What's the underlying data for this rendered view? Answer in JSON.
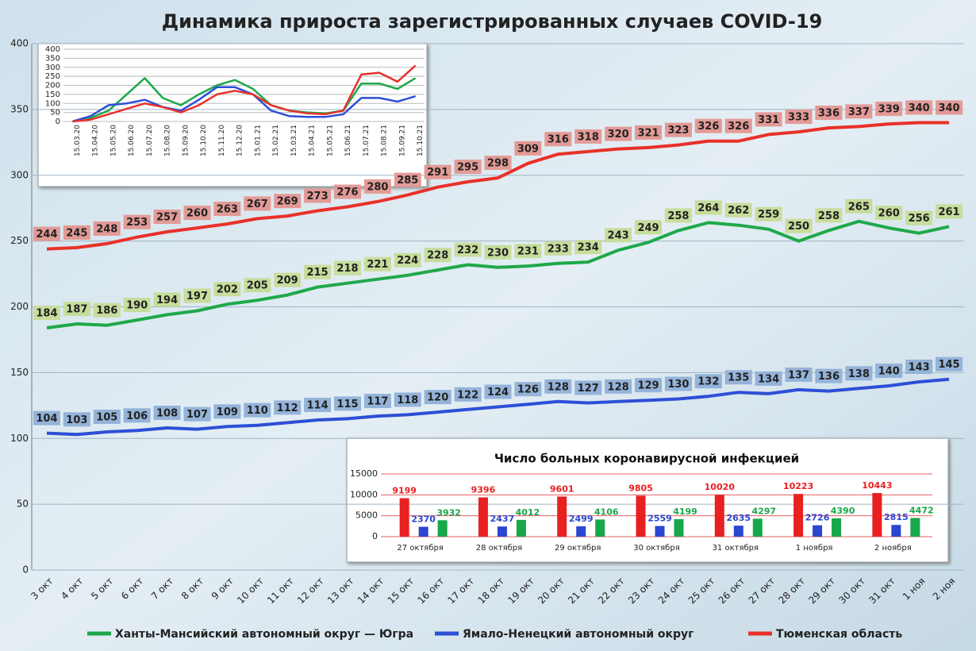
{
  "chart_data": [
    {
      "type": "line",
      "title": "Динамика прироста зарегистрированных случаев COVID-19",
      "categories": [
        "3 окт",
        "4 окт",
        "5 окт",
        "6 окт",
        "7 окт",
        "8 окт",
        "9 окт",
        "10 окт",
        "11 окт",
        "12 окт",
        "13 окт",
        "14 окт",
        "15 окт",
        "16 окт",
        "17 окт",
        "18 окт",
        "19 окт",
        "20 окт",
        "21 окт",
        "22 окт",
        "23 окт",
        "24 окт",
        "25 окт",
        "26 окт",
        "27 окт",
        "28 окт",
        "29 окт",
        "30 окт",
        "31 окт",
        "1 ноя",
        "2 ноя"
      ],
      "ylim": [
        0,
        400
      ],
      "yticks": [
        0,
        50,
        100,
        150,
        200,
        250,
        300,
        350,
        400
      ],
      "grid": true,
      "series": [
        {
          "name": "Ханты-Мансийский автономный округ — Югра",
          "color": "#1fa84a",
          "label_color": "#c7dd9c",
          "values": [
            184,
            187,
            186,
            190,
            194,
            197,
            202,
            205,
            209,
            215,
            218,
            221,
            224,
            228,
            232,
            230,
            231,
            233,
            234,
            243,
            249,
            258,
            264,
            262,
            259,
            250,
            258,
            265,
            260,
            256,
            261
          ]
        },
        {
          "name": "Ямало-Ненецкий автономный округ",
          "color": "#2d4fd6",
          "label_color": "#94b3d9",
          "values": [
            104,
            103,
            105,
            106,
            108,
            107,
            109,
            110,
            112,
            114,
            115,
            117,
            118,
            120,
            122,
            124,
            126,
            128,
            127,
            128,
            129,
            130,
            132,
            135,
            134,
            137,
            136,
            138,
            140,
            143,
            145
          ]
        },
        {
          "name": "Тюменская область",
          "color": "#e8312a",
          "label_color": "#e39a96",
          "values": [
            244,
            245,
            248,
            253,
            257,
            260,
            263,
            267,
            269,
            273,
            276,
            280,
            285,
            291,
            295,
            298,
            309,
            316,
            318,
            320,
            321,
            323,
            326,
            326,
            331,
            333,
            336,
            337,
            339,
            340,
            340
          ]
        }
      ]
    },
    {
      "type": "line",
      "categories": [
        "15.03.20",
        "15.04.20",
        "15.05.20",
        "15.06.20",
        "15.07.20",
        "15.08.20",
        "15.09.20",
        "15.10.20",
        "15.11.20",
        "15.12.20",
        "15.01.21",
        "15.02.21",
        "15.03.21",
        "15.04.21",
        "15.05.21",
        "15.06.21",
        "15.07.21",
        "15.08.21",
        "15.09.21",
        "15.10.21"
      ],
      "ylim": [
        0,
        400
      ],
      "yticks": [
        0,
        50,
        100,
        150,
        200,
        250,
        300,
        350,
        400
      ],
      "grid": true,
      "series": [
        {
          "color": "#1fa84a",
          "values": [
            0,
            20,
            60,
            150,
            240,
            130,
            90,
            150,
            200,
            230,
            180,
            90,
            60,
            50,
            45,
            60,
            210,
            210,
            180,
            240
          ]
        },
        {
          "color": "#2d4fd6",
          "values": [
            0,
            30,
            90,
            100,
            120,
            80,
            60,
            120,
            190,
            190,
            150,
            60,
            30,
            25,
            25,
            40,
            130,
            130,
            110,
            140
          ]
        },
        {
          "color": "#e8312a",
          "values": [
            0,
            10,
            40,
            70,
            100,
            80,
            50,
            90,
            150,
            170,
            150,
            90,
            60,
            45,
            40,
            60,
            260,
            270,
            220,
            310
          ]
        }
      ]
    },
    {
      "type": "bar",
      "title": "Число больных коронавирусной инфекцией",
      "categories": [
        "27 октября",
        "28 октября",
        "29 октября",
        "30 октября",
        "31 октября",
        "1 ноября",
        "2 ноября"
      ],
      "ylim": [
        0,
        15000
      ],
      "yticks": [
        0,
        5000,
        10000,
        15000
      ],
      "grid": true,
      "series": [
        {
          "color": "#e82020",
          "values": [
            9199,
            9396,
            9601,
            9805,
            10020,
            10223,
            10443
          ]
        },
        {
          "color": "#2b46d0",
          "values": [
            2370,
            2437,
            2499,
            2559,
            2635,
            2726,
            2815
          ]
        },
        {
          "color": "#17a84a",
          "values": [
            3932,
            4012,
            4106,
            4199,
            4297,
            4390,
            4472
          ]
        }
      ]
    }
  ]
}
